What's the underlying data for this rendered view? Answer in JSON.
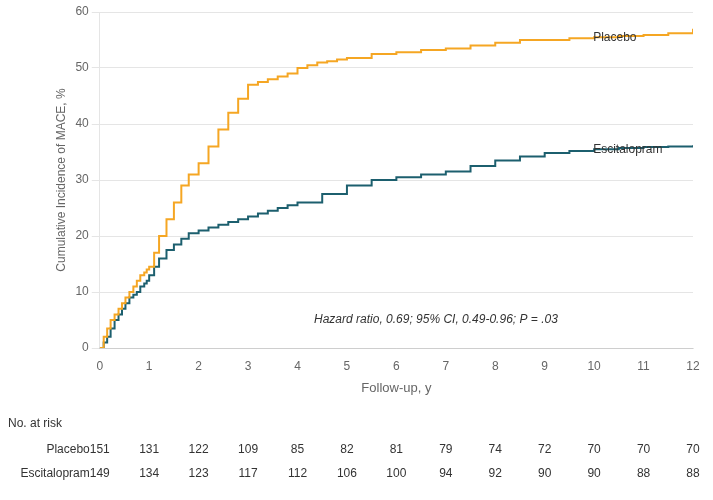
{
  "chart_data": {
    "type": "step",
    "xlabel": "Follow-up, y",
    "ylabel": "Cumulative Incidence of MACE, %",
    "xlim": [
      0,
      12
    ],
    "ylim": [
      0,
      60
    ],
    "xticks": [
      0,
      1,
      2,
      3,
      4,
      5,
      6,
      7,
      8,
      9,
      10,
      11,
      12
    ],
    "yticks": [
      0,
      10,
      20,
      30,
      40,
      50,
      60
    ],
    "grid": "y",
    "series": [
      {
        "name": "Placebo",
        "color": "#F5A623",
        "x": [
          0,
          0.08,
          0.15,
          0.22,
          0.3,
          0.38,
          0.45,
          0.52,
          0.6,
          0.68,
          0.75,
          0.82,
          0.9,
          0.95,
          1.0,
          1.1,
          1.2,
          1.35,
          1.5,
          1.65,
          1.8,
          2.0,
          2.2,
          2.4,
          2.6,
          2.8,
          3.0,
          3.2,
          3.4,
          3.6,
          3.8,
          4.0,
          4.2,
          4.4,
          4.6,
          4.8,
          5.0,
          5.5,
          6.0,
          6.5,
          7.0,
          7.5,
          8.0,
          8.5,
          9.0,
          9.5,
          10.0,
          10.5,
          11.0,
          11.5,
          12.0
        ],
        "values": [
          0,
          2,
          3.5,
          5,
          6,
          7,
          8,
          9,
          10,
          11,
          12,
          13,
          13.5,
          14,
          14.5,
          17,
          20,
          23,
          26,
          29,
          31,
          33,
          36,
          39,
          42,
          44.5,
          47,
          47.5,
          48,
          48.5,
          49,
          50,
          50.5,
          51,
          51.2,
          51.5,
          51.8,
          52.5,
          52.8,
          53.2,
          53.5,
          54,
          54.5,
          55,
          55,
          55.3,
          55.5,
          55.7,
          55.9,
          56.2,
          57
        ]
      },
      {
        "name": "Escitalopram",
        "color": "#1C5F6E",
        "x": [
          0,
          0.08,
          0.15,
          0.22,
          0.3,
          0.38,
          0.45,
          0.52,
          0.6,
          0.68,
          0.75,
          0.82,
          0.9,
          0.95,
          1.0,
          1.1,
          1.2,
          1.35,
          1.5,
          1.65,
          1.8,
          2.0,
          2.2,
          2.4,
          2.6,
          2.8,
          3.0,
          3.2,
          3.4,
          3.6,
          3.8,
          4.0,
          4.5,
          5.0,
          5.5,
          6.0,
          6.5,
          7.0,
          7.5,
          8.0,
          8.5,
          9.0,
          9.5,
          10.0,
          10.5,
          11.0,
          11.5,
          12.0
        ],
        "values": [
          0,
          1,
          2,
          3.5,
          5,
          6,
          7,
          8,
          9,
          9.5,
          10,
          11,
          11.5,
          12,
          13,
          14.5,
          16,
          17.5,
          18.5,
          19.5,
          20.5,
          21,
          21.5,
          22,
          22.5,
          23,
          23.5,
          24,
          24.5,
          25,
          25.5,
          26,
          27.5,
          29,
          30,
          30.5,
          31,
          31.5,
          32.5,
          33.5,
          34.2,
          34.8,
          35.2,
          35.5,
          35.7,
          35.9,
          36.0,
          36.2
        ]
      }
    ],
    "curve_labels": [
      {
        "text": "Placebo",
        "x": 9.98,
        "y": 55.5
      },
      {
        "text": "Escitalopram",
        "x": 9.98,
        "y": 35.5
      }
    ],
    "annotations": [
      {
        "text": "Hazard ratio, 0.69; 95% CI, 0.49-0.96; P = .03",
        "x": 6.8,
        "y": 4
      }
    ],
    "risk_table": {
      "title": "No. at risk",
      "x": [
        0,
        1,
        2,
        3,
        4,
        5,
        6,
        7,
        8,
        9,
        10,
        11,
        12
      ],
      "rows": [
        {
          "name": "Placebo",
          "values": [
            151,
            131,
            122,
            109,
            85,
            82,
            81,
            79,
            74,
            72,
            70,
            70,
            70
          ]
        },
        {
          "name": "Escitalopram",
          "values": [
            149,
            134,
            123,
            117,
            112,
            106,
            100,
            94,
            92,
            90,
            90,
            88,
            88
          ]
        }
      ]
    },
    "legend": false
  }
}
